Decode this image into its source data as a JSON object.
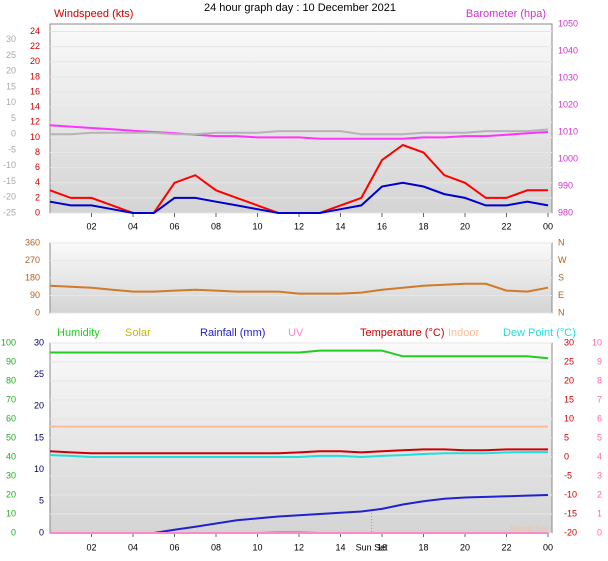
{
  "title": "24 hour graph day : 10 December 2021",
  "chart_data": [
    {
      "type": "line",
      "ylabel": "Windspeed (kts)",
      "y2label": "Barometer (hpa)",
      "x": [
        0,
        1,
        2,
        3,
        4,
        5,
        6,
        7,
        8,
        9,
        10,
        11,
        12,
        13,
        14,
        15,
        16,
        17,
        18,
        19,
        20,
        21,
        22,
        23,
        24
      ],
      "xlim": [
        0,
        24
      ],
      "xticks": [
        {
          "value": 2,
          "label": "02"
        },
        {
          "value": 4,
          "label": "04"
        },
        {
          "value": 6,
          "label": "06"
        },
        {
          "value": 8,
          "label": "08"
        },
        10,
        12,
        14,
        16,
        18,
        20,
        22,
        {
          "value": 24,
          "label": "00"
        }
      ],
      "ylim": [
        0,
        25
      ],
      "yticks": [
        0,
        2,
        4,
        6,
        8,
        10,
        12,
        14,
        16,
        18,
        20,
        22,
        24
      ],
      "y2lim": [
        980,
        1050
      ],
      "y2ticks": [
        980,
        990,
        1000,
        1010,
        1020,
        1030,
        1040,
        1050
      ],
      "y3lim": [
        -25,
        35
      ],
      "y3ticks": [
        30,
        25,
        20,
        15,
        10,
        5,
        0,
        -5,
        -10,
        -15,
        -20,
        -25
      ],
      "grid": true,
      "series": [
        {
          "color": "#ff33ff",
          "axis": "y2",
          "values": [
            1012.5,
            1012,
            1011.5,
            1011,
            1010.5,
            1010,
            1009.5,
            1009,
            1008.5,
            1008.5,
            1008,
            1008,
            1008,
            1007.5,
            1007.5,
            1007.5,
            1007.5,
            1007.5,
            1008,
            1008,
            1008.5,
            1008.5,
            1009,
            1009.5,
            1010
          ]
        },
        {
          "color": "#b4b4b4",
          "axis": "y3",
          "values": [
            0,
            0,
            0.5,
            0.5,
            0.5,
            0.5,
            0,
            0,
            0.5,
            0.5,
            0.5,
            1,
            1,
            1,
            1,
            0,
            0,
            0,
            0.5,
            0.5,
            0.5,
            1,
            1,
            1,
            1.5
          ]
        },
        {
          "color": "#ff0000",
          "axis": "y",
          "values": [
            3,
            2,
            2,
            1,
            0,
            0,
            4,
            5,
            3,
            2,
            1,
            0,
            0,
            0,
            1,
            2,
            7,
            9,
            8,
            5,
            4,
            2,
            2,
            3,
            3
          ]
        },
        {
          "color": "#0000cc",
          "axis": "y",
          "values": [
            1.5,
            1,
            1,
            0.5,
            0,
            0,
            2,
            2,
            1.5,
            1,
            0.5,
            0,
            0,
            0,
            0.5,
            1,
            3.5,
            4,
            3.5,
            2.5,
            2,
            1,
            1,
            1.5,
            1
          ]
        }
      ]
    },
    {
      "type": "line",
      "x": [
        0,
        1,
        2,
        3,
        4,
        5,
        6,
        7,
        8,
        9,
        10,
        11,
        12,
        13,
        14,
        15,
        16,
        17,
        18,
        19,
        20,
        21,
        22,
        23,
        24
      ],
      "xlim": [
        0,
        24
      ],
      "ylim": [
        0,
        360
      ],
      "yticks": [
        0,
        90,
        180,
        270,
        360
      ],
      "y2lim": [
        0,
        360
      ],
      "y2ticks": [
        {
          "value": 0,
          "label": "N"
        },
        {
          "value": 90,
          "label": "E"
        },
        {
          "value": 180,
          "label": "S"
        },
        {
          "value": 270,
          "label": "W"
        },
        {
          "value": 360,
          "label": "N"
        }
      ],
      "grid": true,
      "series": [
        {
          "color": "#d07a2a",
          "axis": "y",
          "values": [
            140,
            135,
            130,
            120,
            110,
            110,
            115,
            120,
            115,
            110,
            110,
            110,
            100,
            100,
            100,
            105,
            120,
            130,
            140,
            145,
            150,
            150,
            115,
            110,
            130
          ]
        }
      ]
    },
    {
      "type": "line",
      "x": [
        0,
        1,
        2,
        3,
        4,
        5,
        6,
        7,
        8,
        9,
        10,
        11,
        12,
        13,
        14,
        15,
        16,
        17,
        18,
        19,
        20,
        21,
        22,
        23,
        24
      ],
      "xlim": [
        0,
        24
      ],
      "xticks": [
        {
          "value": 2,
          "label": "02"
        },
        {
          "value": 4,
          "label": "04"
        },
        {
          "value": 6,
          "label": "06"
        },
        {
          "value": 8,
          "label": "08"
        },
        10,
        12,
        14,
        16,
        18,
        20,
        22,
        {
          "value": 24,
          "label": "00"
        }
      ],
      "ylim": [
        0,
        100
      ],
      "yticks": [
        0,
        10,
        20,
        30,
        40,
        50,
        60,
        70,
        80,
        90,
        100
      ],
      "y2lim": [
        -20,
        30
      ],
      "y2ticks": [
        30,
        25,
        20,
        15,
        10,
        5,
        0,
        -5,
        -10,
        -15,
        -20
      ],
      "y3lim": [
        0,
        30
      ],
      "y3ticks": [
        0,
        5,
        10,
        15,
        20,
        25,
        30
      ],
      "y4lim": [
        0,
        10
      ],
      "y4ticks": [
        0,
        1,
        2,
        3,
        4,
        5,
        6,
        7,
        8,
        9,
        10
      ],
      "grid": true,
      "series": [
        {
          "name": "Humidity",
          "color": "#22cc22",
          "axis": "y",
          "values": [
            95,
            95,
            95,
            95,
            95,
            95,
            95,
            95,
            95,
            95,
            95,
            95,
            95,
            96,
            96,
            96,
            96,
            93,
            93,
            93,
            93,
            93,
            93,
            93,
            92
          ]
        },
        {
          "name": "Solar",
          "color": "#c8b400",
          "axis": "y",
          "values": [
            0,
            0,
            0,
            0,
            0,
            0,
            0,
            0,
            0,
            0,
            0,
            0.5,
            0.5,
            0,
            0,
            0,
            0,
            0,
            0,
            0,
            0,
            0,
            0,
            0,
            0
          ]
        },
        {
          "name": "Rainfall (mm)",
          "color": "#2222cc",
          "axis": "y3",
          "values": [
            0,
            0,
            0,
            0,
            0,
            0,
            0.5,
            1,
            1.5,
            2,
            2.3,
            2.6,
            2.8,
            3,
            3.2,
            3.4,
            3.8,
            4.5,
            5,
            5.4,
            5.6,
            5.7,
            5.8,
            5.9,
            6
          ]
        },
        {
          "name": "UV",
          "color": "#ff88cc",
          "axis": "y4",
          "values": [
            0,
            0,
            0,
            0,
            0,
            0,
            0,
            0,
            0,
            0,
            0,
            0,
            0,
            0,
            0,
            0,
            0,
            0,
            0,
            0,
            0,
            0,
            0,
            0,
            0
          ]
        },
        {
          "name": "Temperature (°C)",
          "color": "#cc0000",
          "axis": "y2",
          "values": [
            1.5,
            1.2,
            1,
            1,
            1,
            1,
            1,
            1,
            1,
            1,
            1,
            1,
            1.2,
            1.5,
            1.5,
            1.2,
            1.5,
            1.8,
            2,
            2,
            1.8,
            1.8,
            2,
            2,
            2
          ]
        },
        {
          "name": "Indoor",
          "color": "#ffbb99",
          "axis": "y2",
          "values": [
            8,
            8,
            8,
            8,
            8,
            8,
            8,
            8,
            8,
            8,
            8,
            8,
            8,
            8,
            8,
            8,
            8,
            8,
            8,
            8,
            8,
            8,
            8,
            8,
            8
          ]
        },
        {
          "name": "Dew Point (°C)",
          "color": "#22dddd",
          "axis": "y2",
          "values": [
            0.5,
            0.3,
            0,
            0,
            0,
            0,
            0,
            0,
            0,
            0,
            0,
            0,
            0,
            0.3,
            0.3,
            0,
            0.3,
            0.5,
            0.8,
            1,
            1,
            1,
            1.2,
            1.3,
            1.3
          ]
        }
      ],
      "annotations": [
        {
          "text": "Sun Set",
          "x": 15.5
        },
        {
          "text": "Moon Set",
          "x": 23.1
        }
      ]
    }
  ]
}
